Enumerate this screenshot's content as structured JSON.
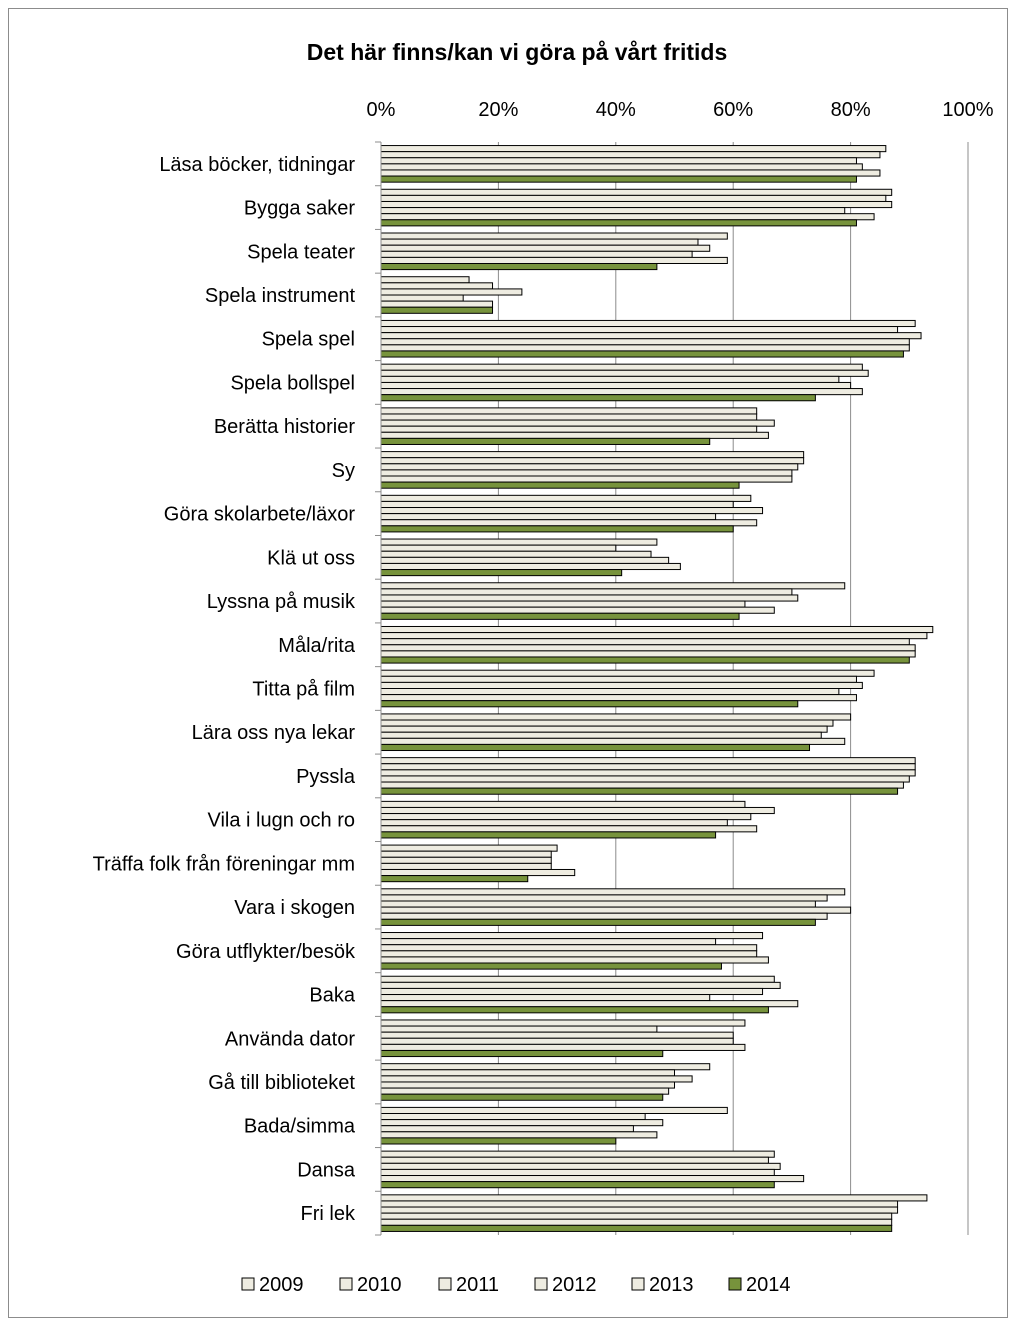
{
  "chart_data": {
    "type": "bar",
    "orientation": "horizontal",
    "title": "Det här finns/kan vi göra på vårt fritids",
    "xlim": [
      0,
      100
    ],
    "xticks": [
      "0%",
      "20%",
      "40%",
      "60%",
      "80%",
      "100%"
    ],
    "grid": true,
    "legend_position": "bottom",
    "categories": [
      "Läsa böcker, tidningar",
      "Bygga saker",
      "Spela teater",
      "Spela instrument",
      "Spela spel",
      "Spela bollspel",
      "Berätta historier",
      "Sy",
      "Göra skolarbete/läxor",
      "Klä ut oss",
      "Lyssna på musik",
      "Måla/rita",
      "Titta på film",
      "Lära oss nya lekar",
      "Pyssla",
      "Vila i lugn och ro",
      "Träffa folk från föreningar mm",
      "Vara i skogen",
      "Göra utflykter/besök",
      "Baka",
      "Använda dator",
      "Gå till biblioteket",
      "Bada/simma",
      "Dansa",
      "Fri lek"
    ],
    "series": [
      {
        "name": "2009",
        "color": "#eeece1",
        "values": [
          86,
          87,
          59,
          15,
          91,
          82,
          64,
          72,
          63,
          47,
          79,
          94,
          84,
          80,
          91,
          62,
          30,
          79,
          65,
          67,
          62,
          56,
          59,
          67,
          93
        ]
      },
      {
        "name": "2010",
        "color": "#eeece1",
        "values": [
          85,
          86,
          54,
          19,
          88,
          83,
          64,
          72,
          60,
          40,
          70,
          93,
          81,
          77,
          91,
          67,
          29,
          76,
          57,
          68,
          47,
          50,
          45,
          66,
          88
        ]
      },
      {
        "name": "2011",
        "color": "#eeece1",
        "values": [
          81,
          87,
          56,
          24,
          92,
          78,
          67,
          71,
          65,
          46,
          71,
          90,
          82,
          76,
          91,
          63,
          29,
          74,
          64,
          65,
          60,
          53,
          48,
          68,
          88
        ]
      },
      {
        "name": "2012",
        "color": "#eeece1",
        "values": [
          82,
          79,
          53,
          14,
          90,
          80,
          64,
          70,
          57,
          49,
          62,
          91,
          78,
          75,
          90,
          59,
          29,
          80,
          64,
          56,
          60,
          50,
          43,
          67,
          87
        ]
      },
      {
        "name": "2013",
        "color": "#eeece1",
        "values": [
          85,
          84,
          59,
          19,
          90,
          82,
          66,
          70,
          64,
          51,
          67,
          91,
          81,
          79,
          89,
          64,
          33,
          76,
          66,
          71,
          62,
          49,
          47,
          72,
          87
        ]
      },
      {
        "name": "2014",
        "color": "#77933c",
        "values": [
          81,
          81,
          47,
          19,
          89,
          74,
          56,
          61,
          60,
          41,
          61,
          90,
          71,
          73,
          88,
          57,
          25,
          74,
          58,
          66,
          48,
          48,
          40,
          67,
          87
        ]
      }
    ]
  }
}
